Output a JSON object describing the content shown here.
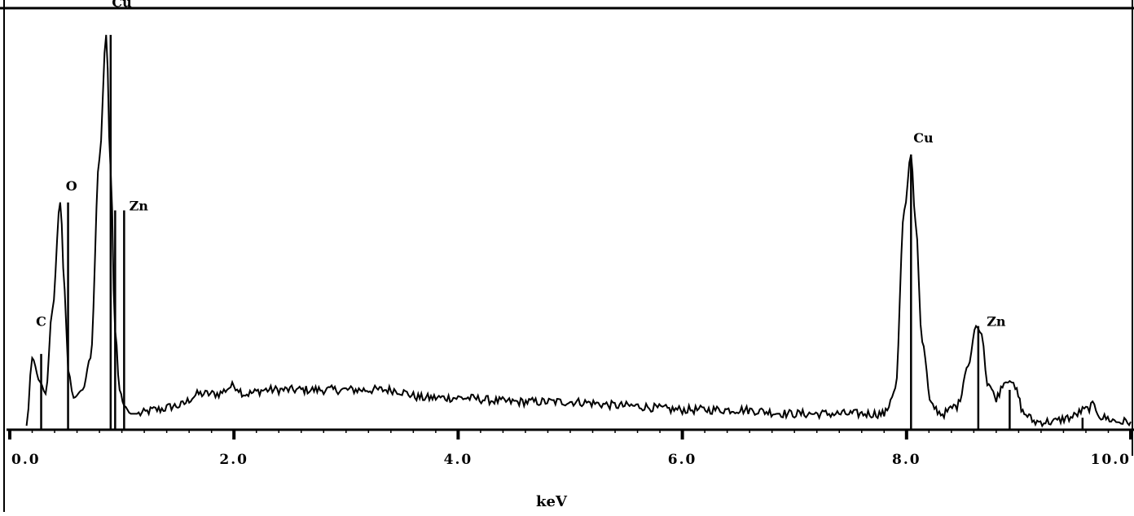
{
  "chart_data": {
    "type": "line",
    "title": "",
    "xlabel": "keV",
    "ylabel": "",
    "xlim": [
      0.0,
      10.0
    ],
    "ylim": [
      0,
      100
    ],
    "x_ticks": [
      "0.0",
      "2.0",
      "4.0",
      "6.0",
      "8.0",
      "10.0"
    ],
    "x_tick_values": [
      0,
      2,
      4,
      6,
      8,
      10
    ],
    "grid": false,
    "series": [
      {
        "values_note_free": true,
        "x": [
          0.15,
          0.2,
          0.27,
          0.32,
          0.38,
          0.45,
          0.49,
          0.52,
          0.57,
          0.65,
          0.72,
          0.8,
          0.86,
          0.9,
          0.94,
          0.98,
          1.02,
          1.08,
          1.15,
          1.3,
          1.5,
          1.7,
          1.85,
          2.0,
          2.1,
          2.3,
          2.6,
          3.0,
          3.4,
          3.7,
          4.0,
          4.5,
          5.0,
          5.5,
          6.0,
          6.5,
          7.0,
          7.5,
          7.8,
          7.9,
          7.98,
          8.04,
          8.08,
          8.14,
          8.22,
          8.32,
          8.45,
          8.55,
          8.62,
          8.67,
          8.72,
          8.8,
          8.87,
          8.92,
          8.97,
          9.05,
          9.15,
          9.3,
          9.45,
          9.6,
          9.66,
          9.75,
          9.9,
          10.0
        ],
        "y": [
          1,
          18,
          12,
          9,
          30,
          57,
          35,
          15,
          8,
          10,
          18,
          68,
          99,
          65,
          25,
          10,
          6,
          4,
          4,
          5,
          6,
          9,
          9,
          11,
          9,
          10,
          10,
          10,
          10,
          8,
          8,
          7,
          7,
          6,
          5,
          5,
          4,
          4,
          4,
          10,
          55,
          69,
          52,
          22,
          6,
          4,
          6,
          16,
          26,
          24,
          12,
          8,
          12,
          13,
          10,
          4,
          2,
          2,
          3,
          5,
          6,
          3,
          2,
          2
        ]
      }
    ],
    "peak_labels": [
      "C",
      "O",
      "Cu",
      "Zn",
      "Cu",
      "Zn"
    ],
    "peak_label_x": [
      0.28,
      0.55,
      1.0,
      1.15,
      8.15,
      8.8
    ],
    "peak_label_y": [
      26,
      60,
      106,
      55,
      72,
      26
    ],
    "marker_lines_x": [
      0.28,
      0.52,
      0.9,
      0.94,
      1.02,
      8.04,
      8.64,
      8.92,
      9.57
    ],
    "marker_lines_y": [
      19,
      57,
      99,
      55,
      55,
      69,
      26,
      10,
      3
    ]
  }
}
